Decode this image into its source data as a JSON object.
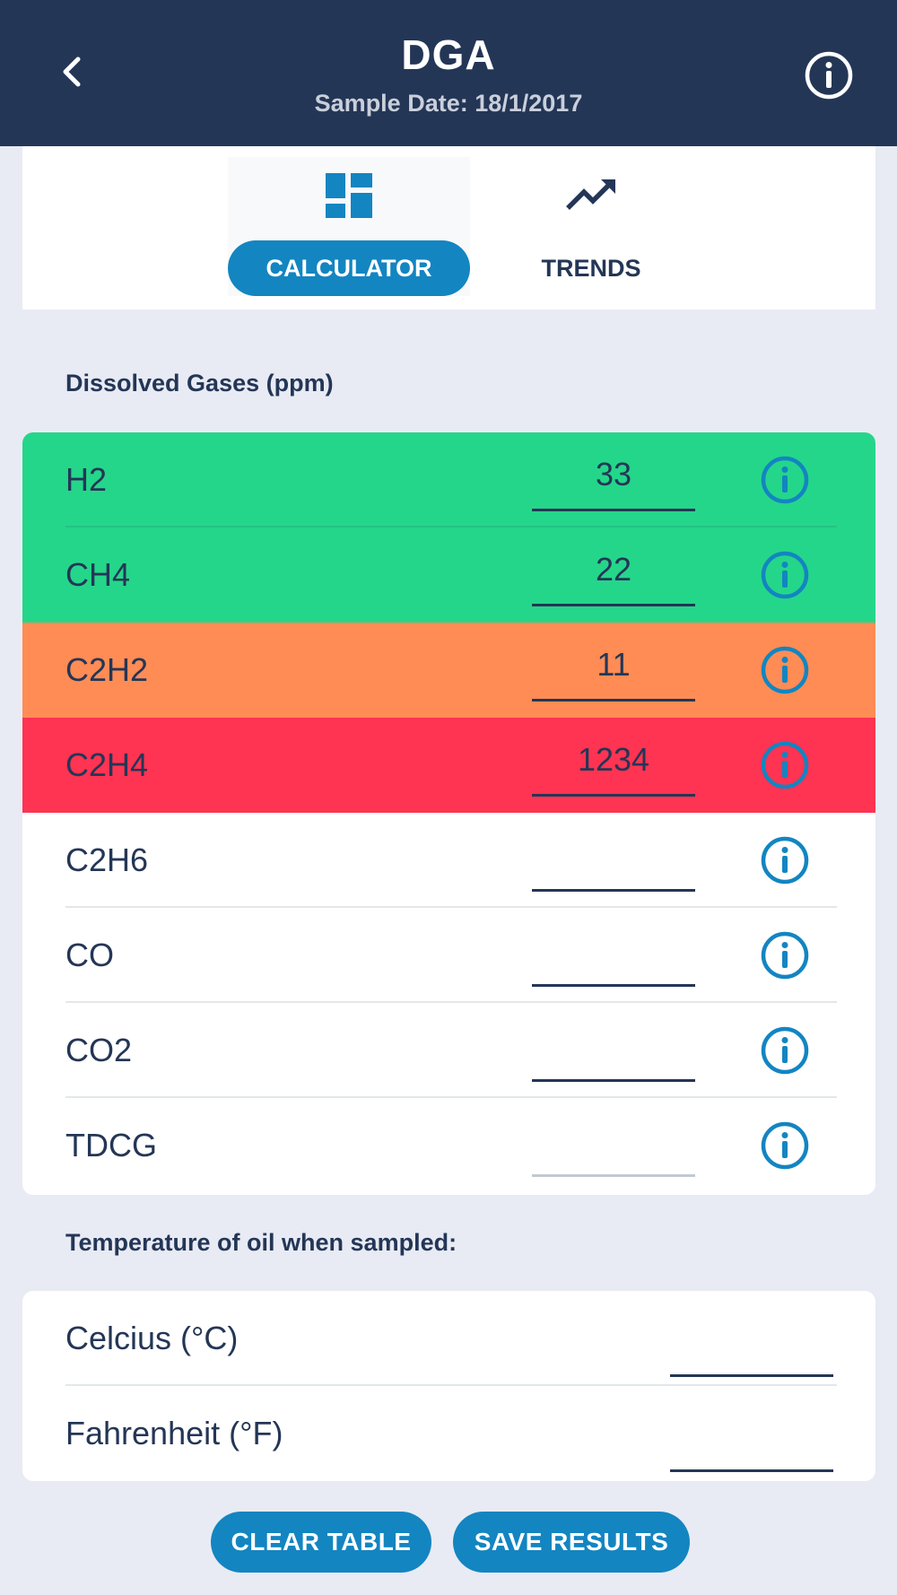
{
  "header": {
    "title": "DGA",
    "subtitle": "Sample Date: 18/1/2017",
    "back_icon": "chevron-left-icon",
    "info_icon": "info-icon"
  },
  "tabs": [
    {
      "label": "CALCULATOR",
      "icon": "dashboard-icon",
      "active": true
    },
    {
      "label": "TRENDS",
      "icon": "trending-up-icon",
      "active": false
    }
  ],
  "gases": {
    "title": "Dissolved Gases (ppm)",
    "rows": [
      {
        "label": "H2",
        "value": "33",
        "status": "green"
      },
      {
        "label": "CH4",
        "value": "22",
        "status": "green"
      },
      {
        "label": "C2H2",
        "value": "11",
        "status": "orange"
      },
      {
        "label": "C2H4",
        "value": "1234",
        "status": "red"
      },
      {
        "label": "C2H6",
        "value": "",
        "status": "none"
      },
      {
        "label": "CO",
        "value": "",
        "status": "none"
      },
      {
        "label": "CO2",
        "value": "",
        "status": "none"
      },
      {
        "label": "TDCG",
        "value": "",
        "status": "none"
      }
    ]
  },
  "temperature": {
    "title": "Temperature of oil when sampled:",
    "rows": [
      {
        "label": "Celcius (°C)",
        "value": ""
      },
      {
        "label": "Fahrenheit (°F)",
        "value": ""
      }
    ]
  },
  "buttons": {
    "clear": "CLEAR TABLE",
    "save": "SAVE RESULTS"
  },
  "colors": {
    "header": "#243656",
    "accent": "#1385c1",
    "green": "#24d68a",
    "orange": "#ff8c55",
    "red": "#ff3352",
    "background": "#e8ebf4"
  }
}
